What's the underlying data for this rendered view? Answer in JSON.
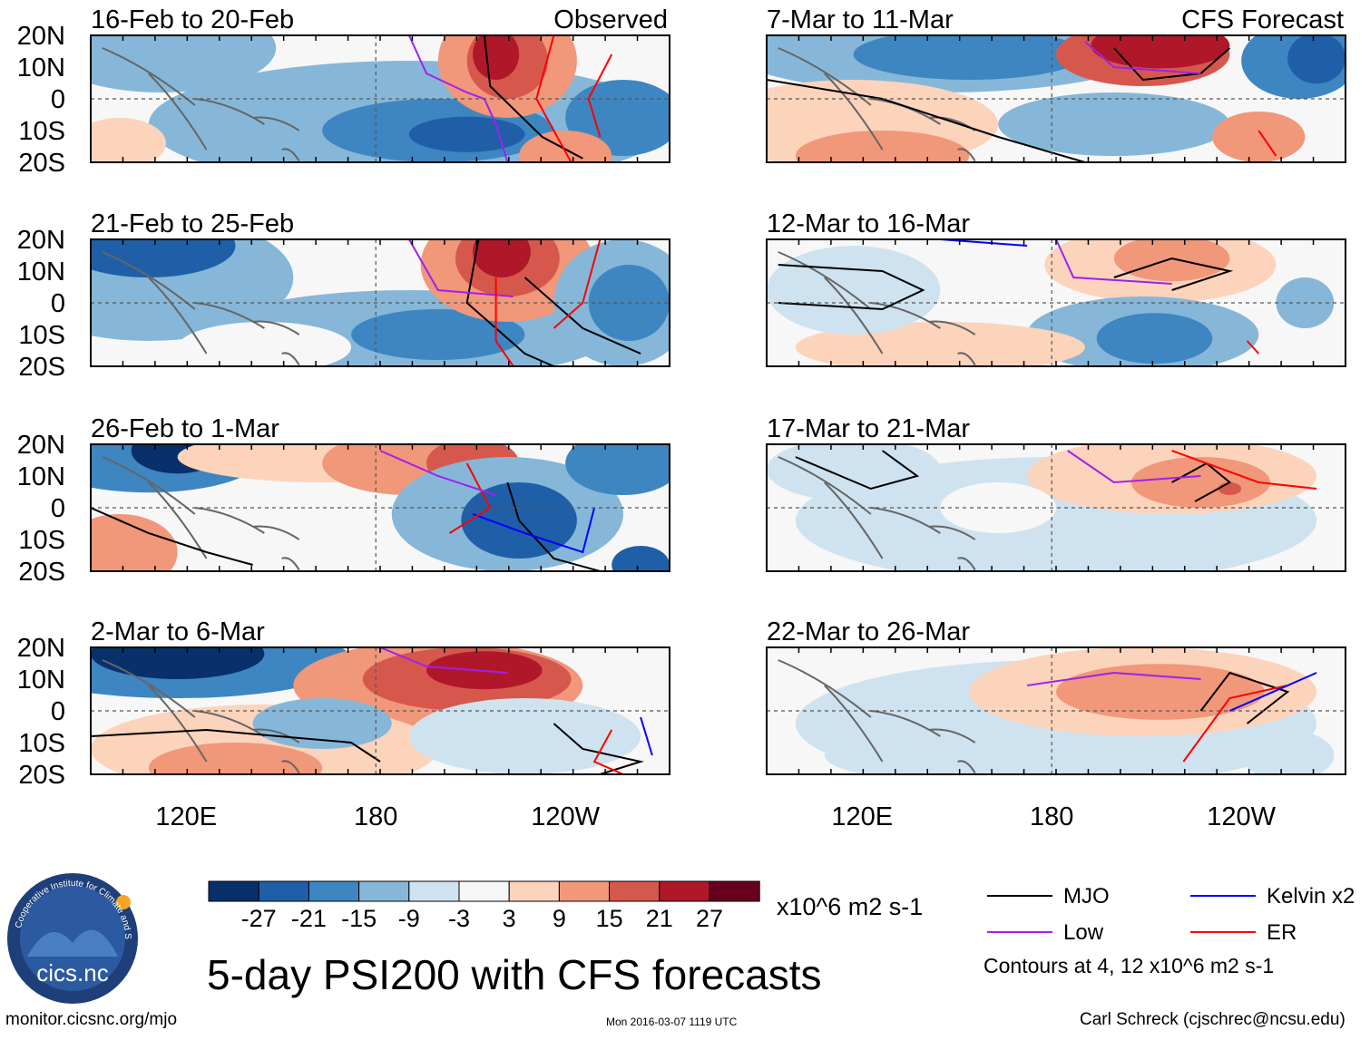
{
  "figure": {
    "title": "5-day PSI200 with CFS forecasts",
    "website": "monitor.cicsnc.org/mjo",
    "timestamp": "Mon 2016-03-07 1119 UTC",
    "author": "Carl Schreck (cjschrec@ncsu.edu)",
    "logo": {
      "text": "cics.nc",
      "ring_text": "Cooperative Institute for Climate and Satellites"
    }
  },
  "tags": {
    "observed": "Observed",
    "forecast": "CFS Forecast"
  },
  "panels": [
    {
      "period": "16-Feb to 20-Feb",
      "kind": "observed"
    },
    {
      "period": "21-Feb to 25-Feb",
      "kind": "observed"
    },
    {
      "period": "26-Feb to 1-Mar",
      "kind": "observed"
    },
    {
      "period": "2-Mar to 6-Mar",
      "kind": "observed"
    },
    {
      "period": "7-Mar to 11-Mar",
      "kind": "forecast"
    },
    {
      "period": "12-Mar to 16-Mar",
      "kind": "forecast"
    },
    {
      "period": "17-Mar to 21-Mar",
      "kind": "forecast"
    },
    {
      "period": "22-Mar to 26-Mar",
      "kind": "forecast"
    }
  ],
  "lat_ticks": [
    "20N",
    "10N",
    "0",
    "10S",
    "20S"
  ],
  "lon_ticks": [
    "120E",
    "180",
    "120W"
  ],
  "colorbar": {
    "labels": [
      "-27",
      "-21",
      "-15",
      "-9",
      "-3",
      "3",
      "9",
      "15",
      "21",
      "27"
    ],
    "colors": [
      "#08306b",
      "#1f5fa8",
      "#3d86c1",
      "#86b7d8",
      "#cfe2ef",
      "#f7f7f7",
      "#fcd3bb",
      "#f1977a",
      "#d6584c",
      "#b0182a",
      "#67001f"
    ],
    "units": "x10^6 m2 s-1"
  },
  "legend": {
    "items": [
      {
        "label": "MJO",
        "color": "#000000"
      },
      {
        "label": "Kelvin x2",
        "color": "#0000ff"
      },
      {
        "label": "Low",
        "color": "#a020f0"
      },
      {
        "label": "ER",
        "color": "#ff0000"
      }
    ],
    "note": "Contours at 4, 12 x10^6 m2 s-1"
  },
  "colors": {
    "land": "#666666",
    "grid": "#555555"
  }
}
